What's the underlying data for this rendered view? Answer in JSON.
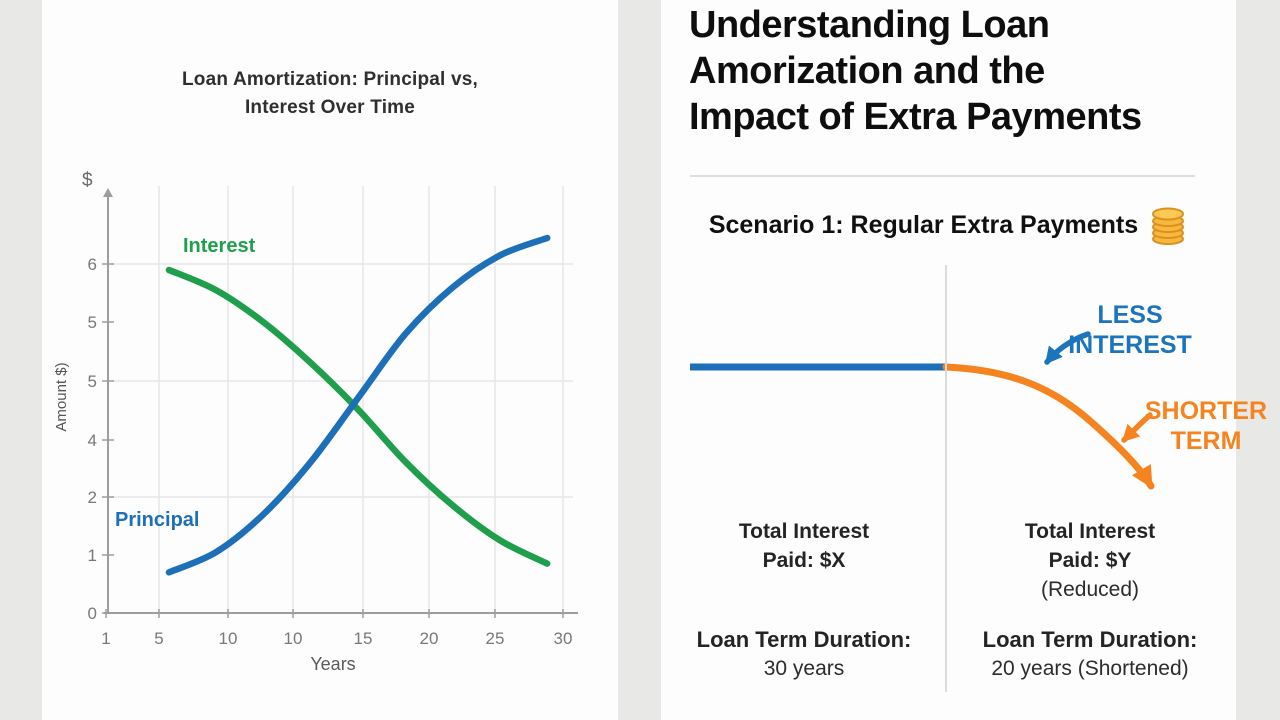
{
  "colors": {
    "principal_blue": "#1d6fb8",
    "interest_green": "#1f9e4b",
    "annotation_blue": "#1b74bc",
    "accent_orange": "#f5831f",
    "panel_white": "#fdfdfd",
    "background_gray": "#e8e8e7",
    "gridline": "#e7e7e7",
    "axis_gray": "#9d9d9d",
    "divider_gray": "#dedede"
  },
  "chart_data": [
    {
      "type": "line",
      "title": "Loan Amortization: Principal vs, Interest Over Time",
      "title_lines": [
        "Loan Amortization: Principal vs,",
        "Interest Over Time"
      ],
      "xlabel": "Years",
      "ylabel": "Amount $)",
      "y_axis_symbol": "$",
      "x_tick_labels": [
        "1",
        "5",
        "10",
        "10",
        "15",
        "20",
        "25",
        "30"
      ],
      "y_tick_labels_top_to_bottom": [
        "6",
        "5",
        "5",
        "4",
        "2",
        "1",
        "0"
      ],
      "xlim": [
        1,
        30
      ],
      "ylim": [
        0,
        7
      ],
      "grid": true,
      "legend_position": "inline-labels",
      "series": [
        {
          "name": "Interest",
          "color": "#1f9e4b",
          "points": [
            [
              5,
              5.9
            ],
            [
              8,
              5.55
            ],
            [
              11,
              5.0
            ],
            [
              14,
              4.3
            ],
            [
              17,
              3.5
            ],
            [
              20,
              2.6
            ],
            [
              23,
              1.85
            ],
            [
              26,
              1.25
            ],
            [
              29,
              0.85
            ]
          ]
        },
        {
          "name": "Principal",
          "color": "#1d6fb8",
          "points": [
            [
              5,
              0.7
            ],
            [
              8,
              1.05
            ],
            [
              11,
              1.7
            ],
            [
              14,
              2.6
            ],
            [
              17,
              3.7
            ],
            [
              20,
              4.8
            ],
            [
              23,
              5.6
            ],
            [
              26,
              6.15
            ],
            [
              29,
              6.45
            ]
          ]
        }
      ]
    },
    {
      "type": "line",
      "title": "Scenario 1: Regular Extra Payments",
      "description": "Conceptual loan balance: flat blue line before extra payments, orange curve dropping steeply after extra payments begin",
      "annotations": {
        "less_line1": "LESS",
        "less_line2": "INTEREST",
        "shorter_line1": "SHORTER",
        "shorter_line2": "TERM"
      },
      "comparison": {
        "before": {
          "interest_line1": "Total Interest",
          "interest_line2": "Paid: $X",
          "term_line1": "Loan Term Duration:",
          "term_line2": "30 years"
        },
        "after": {
          "interest_line1": "Total Interest",
          "interest_line2": "Paid: $Y",
          "reduced_note": "(Reduced)",
          "term_line1": "Loan Term Duration:",
          "term_line2": "20 years (Shortened)"
        }
      }
    }
  ],
  "right_panel": {
    "title_lines": [
      "Understanding Loan",
      "Amorization and the",
      "Impact of Extra Payments"
    ],
    "icons": {
      "scenario": "coin-stack-icon"
    }
  }
}
